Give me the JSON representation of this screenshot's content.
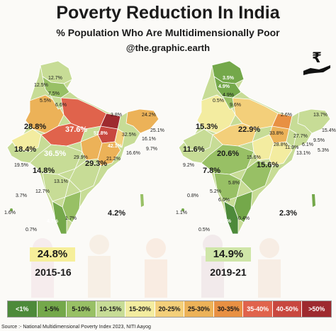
{
  "title": "Poverty Reduction In India",
  "subtitle": "% Population Who Are Multidimensionally Poor",
  "handle": "@the.graphic.earth",
  "rupee_icon": "rupee-hand-icon",
  "legend": [
    {
      "label": "<1%",
      "color": "#4d8a3a"
    },
    {
      "label": "1-5%",
      "color": "#74a84a"
    },
    {
      "label": "5-10%",
      "color": "#98c065"
    },
    {
      "label": "10-15%",
      "color": "#c7dc96"
    },
    {
      "label": "15-20%",
      "color": "#f3eca0"
    },
    {
      "label": "20-25%",
      "color": "#f3cf7a"
    },
    {
      "label": "25-30%",
      "color": "#ecb258"
    },
    {
      "label": "30-35%",
      "color": "#e89043"
    },
    {
      "label": "35-40%",
      "color": "#e0634c"
    },
    {
      "label": "40-50%",
      "color": "#c8473f"
    },
    {
      "label": ">50%",
      "color": "#9e2a2f"
    }
  ],
  "map_2015": {
    "national": "24.8%",
    "year": "2015-16",
    "labels": [
      "12.7%",
      "12.5%",
      "7.5%",
      "5.5%",
      "6.6%",
      "28.8%",
      "37.6%",
      "51.8%",
      "42.1%",
      "3.8%",
      "24.2%",
      "25.1%",
      "32.5%",
      "16.1%",
      "16.6%",
      "9.7%",
      "18.4%",
      "19.5%",
      "36.5%",
      "29.9%",
      "29.3%",
      "21.2%",
      "14.8%",
      "13.1%",
      "12.7%",
      "3.7%",
      "1.6%",
      "0.7%",
      "4.7%",
      "1.7%",
      "4.2%"
    ]
  },
  "map_2019": {
    "national": "14.9%",
    "year": "2019-21",
    "labels": [
      "3.5%",
      "4.9%",
      "4.9%",
      "0.5%",
      "9.6%",
      "15.3%",
      "22.9%",
      "33.8%",
      "28.8%",
      "2.6%",
      "13.7%",
      "15.4%",
      "27.7%",
      "9.5%",
      "13.1%",
      "5.3%",
      "11.6%",
      "9.2%",
      "20.6%",
      "15.6%",
      "15.6%",
      "7.8%",
      "5.8%",
      "0.8%",
      "5.2%",
      "6.0%",
      "1.1%",
      "0.5%",
      "2.2%",
      "0.4%",
      "2.3%",
      "11.9%",
      "6.1%"
    ]
  },
  "source": "Source :- National Multidimensional Poverty Index 2023, NITI Aayog"
}
